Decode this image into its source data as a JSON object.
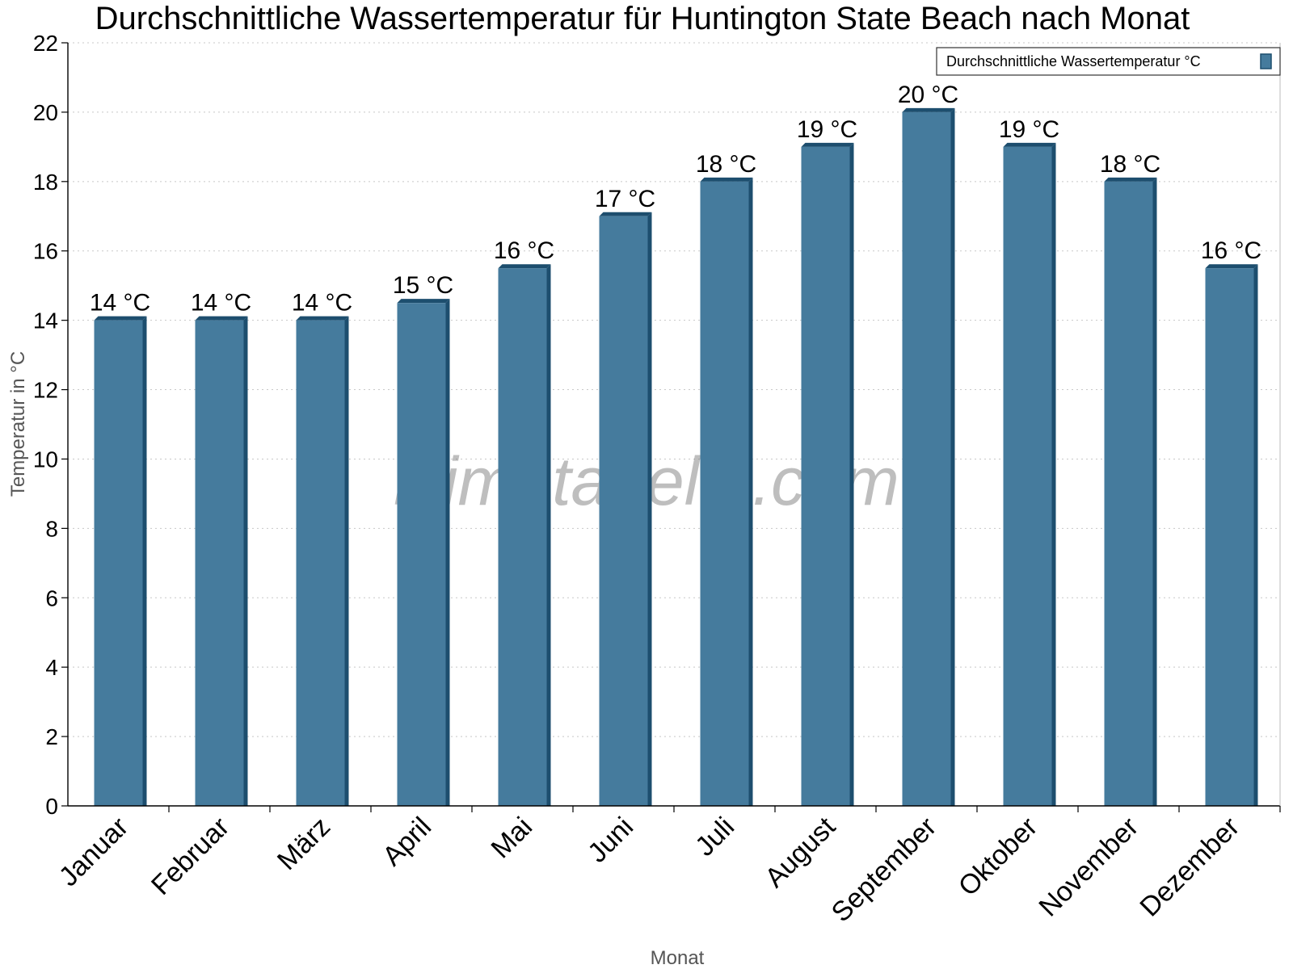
{
  "chart_data": {
    "type": "bar",
    "title": "Durchschnittliche Wassertemperatur für Huntington State Beach nach Monat",
    "xlabel": "Monat",
    "ylabel": "Temperatur in °C",
    "categories": [
      "Januar",
      "Februar",
      "März",
      "April",
      "Mai",
      "Juni",
      "Juli",
      "August",
      "September",
      "Oktober",
      "November",
      "Dezember"
    ],
    "series": [
      {
        "name": "Durchschnittliche Wassertemperatur °C",
        "values": [
          14.0,
          14.0,
          14.0,
          14.5,
          15.5,
          17.0,
          18.0,
          19.0,
          20.0,
          19.0,
          18.0,
          15.5
        ],
        "labels": [
          "14 °C",
          "14 °C",
          "14 °C",
          "15 °C",
          "16 °C",
          "17 °C",
          "18 °C",
          "19 °C",
          "20 °C",
          "19 °C",
          "18 °C",
          "16 °C"
        ],
        "color": "#457b9d",
        "edge_color": "#1d4e6e"
      }
    ],
    "ylim": [
      0,
      22
    ],
    "yticks": [
      "0",
      "2",
      "4",
      "6",
      "8",
      "10",
      "12",
      "14",
      "16",
      "18",
      "20",
      "22"
    ],
    "grid": "horizontal-dotted",
    "legend_position": "top-right",
    "watermark": "klimatabelle.com"
  }
}
